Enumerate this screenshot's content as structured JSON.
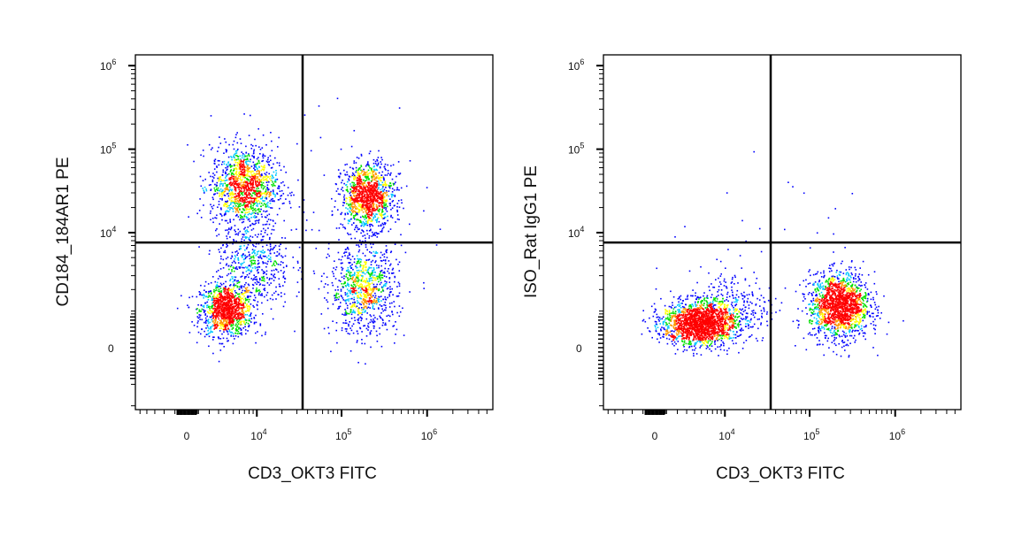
{
  "chart_data": [
    {
      "type": "scatter",
      "subtype": "flow-cytometry-density-dot-plot",
      "xlabel": "CD3_OKT3 FITC",
      "ylabel": "CD184_184AR1 PE",
      "x_ticks": [
        {
          "value": 0,
          "base": "0",
          "exp": ""
        },
        {
          "value": 10000,
          "base": "10",
          "exp": "4"
        },
        {
          "value": 100000,
          "base": "10",
          "exp": "5"
        },
        {
          "value": 1000000,
          "base": "10",
          "exp": "6"
        }
      ],
      "y_ticks": [
        {
          "value": 0,
          "base": "0",
          "exp": ""
        },
        {
          "value": 10000,
          "base": "10",
          "exp": "4"
        },
        {
          "value": 100000,
          "base": "10",
          "exp": "5"
        },
        {
          "value": 1000000,
          "base": "10",
          "exp": "6"
        }
      ],
      "quadrant_gate": {
        "x": 35000,
        "y": 7600
      },
      "populations": [
        {
          "x": 3900,
          "y": 1050,
          "sx": 0.35,
          "sy": 0.35,
          "n": 1100
        },
        {
          "x": 6800,
          "y": 36000,
          "sx": 0.45,
          "sy": 0.55,
          "n": 1300
        },
        {
          "x": 9000,
          "y": 4000,
          "sx": 0.5,
          "sy": 0.6,
          "n": 500
        },
        {
          "x": 200000,
          "y": 28000,
          "sx": 0.35,
          "sy": 0.45,
          "n": 1200
        },
        {
          "x": 180000,
          "y": 2000,
          "sx": 0.45,
          "sy": 0.6,
          "n": 900
        },
        {
          "x": 60000,
          "y": 20000,
          "sx": 1.4,
          "sy": 1.8,
          "n": 60
        }
      ]
    },
    {
      "type": "scatter",
      "subtype": "flow-cytometry-density-dot-plot",
      "xlabel": "CD3_OKT3 FITC",
      "ylabel": "ISO_Rat IgG1 PE",
      "x_ticks": [
        {
          "value": 0,
          "base": "0",
          "exp": ""
        },
        {
          "value": 10000,
          "base": "10",
          "exp": "4"
        },
        {
          "value": 100000,
          "base": "10",
          "exp": "5"
        },
        {
          "value": 1000000,
          "base": "10",
          "exp": "6"
        }
      ],
      "y_ticks": [
        {
          "value": 0,
          "base": "0",
          "exp": ""
        },
        {
          "value": 10000,
          "base": "10",
          "exp": "4"
        },
        {
          "value": 100000,
          "base": "10",
          "exp": "5"
        },
        {
          "value": 1000000,
          "base": "10",
          "exp": "6"
        }
      ],
      "quadrant_gate": {
        "x": 35000,
        "y": 7600
      },
      "populations": [
        {
          "x": 4650,
          "y": 615,
          "sx": 0.5,
          "sy": 0.3,
          "n": 1800
        },
        {
          "x": 12000,
          "y": 1200,
          "sx": 0.6,
          "sy": 0.5,
          "n": 300
        },
        {
          "x": 220000,
          "y": 1220,
          "sx": 0.4,
          "sy": 0.45,
          "n": 1600
        },
        {
          "x": 40000,
          "y": 8000,
          "sx": 1.2,
          "sy": 1.0,
          "n": 25
        }
      ]
    }
  ],
  "colors": {
    "density": [
      "#0000ff",
      "#00c8ff",
      "#00e000",
      "#ffff00",
      "#ff9900",
      "#ff0000"
    ],
    "gate": "#000000"
  }
}
